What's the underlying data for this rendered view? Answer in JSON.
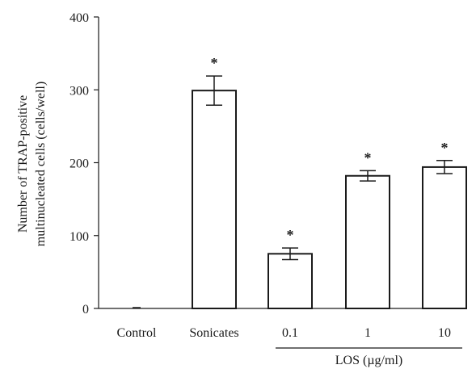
{
  "chart_data": {
    "type": "bar",
    "ylabel_lines": [
      "Number of TRAP-positive",
      "multinucleated cells (cells/well)"
    ],
    "ylim": [
      0,
      400
    ],
    "yticks": [
      "0",
      "100",
      "200",
      "300",
      "400"
    ],
    "categories": [
      "Control",
      "Sonicates",
      "0.1",
      "1",
      "10"
    ],
    "values": [
      0,
      299,
      75,
      182,
      194
    ],
    "errors": [
      0,
      20,
      8,
      7,
      9
    ],
    "significant": [
      false,
      true,
      true,
      true,
      true
    ],
    "significance_marker": "*",
    "group_label": "LOS (µg/ml)",
    "group_categories": [
      "0.1",
      "1",
      "10"
    ],
    "grid": false
  },
  "colors": {
    "bar_fill": "#ffffff",
    "stroke": "#1a1a1a"
  }
}
